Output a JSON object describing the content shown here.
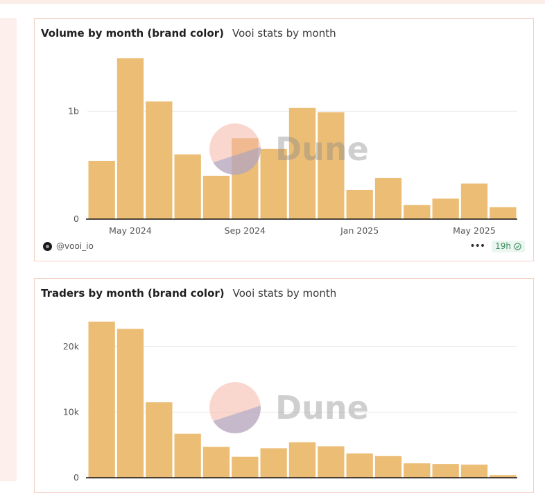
{
  "colors": {
    "bar": "#ecbd75",
    "grid": "#e8e8e8",
    "axis": "#111111"
  },
  "volume_card": {
    "title": "Volume by month (brand color)",
    "subtitle": "Vooi stats by month",
    "footer": {
      "user": "@vooi_io",
      "freshness": "19h",
      "more_icon": "more-dots-icon",
      "status_icon": "check-circle-icon"
    }
  },
  "traders_card": {
    "title": "Traders by month (brand color)",
    "subtitle": "Vooi stats by month"
  },
  "watermark": {
    "text": "Dune"
  },
  "chart_data": [
    {
      "type": "bar",
      "title": "Volume by month (brand color)",
      "subtitle": "Vooi stats by month",
      "x": [
        "2024-04",
        "2024-05",
        "2024-06",
        "2024-07",
        "2024-08",
        "2024-09",
        "2024-10",
        "2024-11",
        "2024-12",
        "2025-01",
        "2025-02",
        "2025-03",
        "2025-04",
        "2025-05",
        "2025-06"
      ],
      "values": [
        0.54,
        1.49,
        1.09,
        0.6,
        0.4,
        0.75,
        0.65,
        1.03,
        0.99,
        0.27,
        0.38,
        0.13,
        0.19,
        0.33,
        0.11
      ],
      "y_ticks": [
        {
          "value": 0,
          "label": "0"
        },
        {
          "value": 1,
          "label": "1b"
        }
      ],
      "x_ticks": [
        {
          "index": 1,
          "label": "May 2024"
        },
        {
          "index": 5,
          "label": "Sep 2024"
        },
        {
          "index": 9,
          "label": "Jan 2025"
        },
        {
          "index": 13,
          "label": "May 2025"
        }
      ],
      "ylim": [
        0,
        1.6
      ],
      "grid": true
    },
    {
      "type": "bar",
      "title": "Traders by month (brand color)",
      "subtitle": "Vooi stats by month",
      "x": [
        "2024-04",
        "2024-05",
        "2024-06",
        "2024-07",
        "2024-08",
        "2024-09",
        "2024-10",
        "2024-11",
        "2024-12",
        "2025-01",
        "2025-02",
        "2025-03",
        "2025-04",
        "2025-05",
        "2025-06"
      ],
      "values": [
        23800,
        22700,
        11500,
        6700,
        4700,
        3200,
        4500,
        5400,
        4800,
        3700,
        3300,
        2200,
        2100,
        2000,
        400
      ],
      "y_ticks": [
        {
          "value": 0,
          "label": "0"
        },
        {
          "value": 10000,
          "label": "10k"
        },
        {
          "value": 20000,
          "label": "20k"
        }
      ],
      "ylim": [
        0,
        26000
      ],
      "grid": true
    }
  ]
}
